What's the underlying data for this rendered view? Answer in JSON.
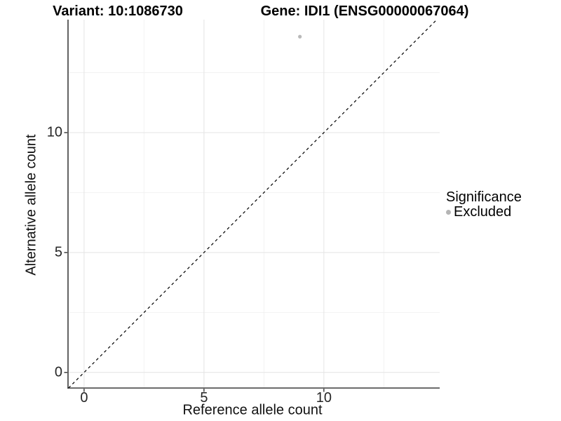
{
  "chart_data": {
    "type": "scatter",
    "title_left": "Variant: 10:1086730",
    "title_right": "Gene: IDI1 (ENSG00000067064)",
    "xlabel": "Reference allele count",
    "ylabel": "Alternative allele count",
    "xlim": [
      -0.67,
      14.83
    ],
    "ylim": [
      -0.65,
      14.71
    ],
    "x_ticks": [
      0,
      5,
      10
    ],
    "y_ticks": [
      0,
      5,
      10
    ],
    "x_minor_ticks": [
      2.5,
      7.5,
      12.5
    ],
    "y_minor_ticks": [
      2.5,
      7.5,
      12.5
    ],
    "grid": "major-and-minor",
    "abline": {
      "slope": 1,
      "intercept": 0,
      "style": "dashed",
      "color": "#000000"
    },
    "series": [
      {
        "name": "Excluded",
        "color": "#b9b9b9",
        "points": [
          {
            "x": 9,
            "y": 14
          }
        ]
      }
    ],
    "legend": {
      "title": "Significance",
      "position": "right",
      "items": [
        {
          "label": "Excluded",
          "color": "#b5b5b5"
        }
      ]
    }
  },
  "colors": {
    "background": "#ffffff",
    "axis_line": "#3c3c3c",
    "tick_mark": "#333333",
    "grid_major": "#e4e4e4",
    "grid_minor": "#f2f2f2",
    "tick_text": "#262626",
    "title_text": "#000000"
  }
}
